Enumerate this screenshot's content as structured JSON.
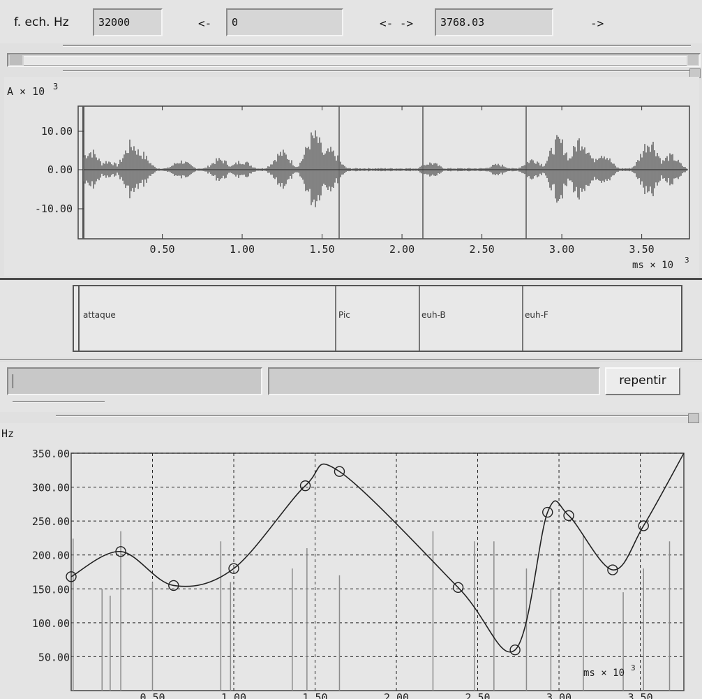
{
  "toolbar": {
    "sample_rate_label": "f. ech. Hz",
    "sample_rate_value": "32000",
    "left_arrow": "<-",
    "start_value": "0",
    "both_arrows": "<- ->",
    "end_value": "3768.03",
    "right_arrow": "->"
  },
  "waveform": {
    "y_unit": "A × 10",
    "y_unit_exp": "3",
    "x_unit": "ms × 10",
    "x_unit_exp": "3",
    "y_ticks": [
      "10.00",
      "0.00",
      "-10.00"
    ],
    "x_ticks": [
      "0.50",
      "1.00",
      "1.50",
      "2.00",
      "2.50",
      "3.00",
      "3.50"
    ]
  },
  "segments": {
    "labels": [
      "attaque",
      "Pic",
      "euh-B",
      "euh-F"
    ]
  },
  "edit_bar": {
    "input_value": "",
    "status_value": "",
    "undo_label": "repentir"
  },
  "pitch": {
    "y_unit": "Hz",
    "x_unit": "ms × 10",
    "x_unit_exp": "3",
    "y_ticks": [
      "350.00",
      "300.00",
      "250.00",
      "200.00",
      "150.00",
      "100.00",
      "50.00"
    ],
    "x_ticks": [
      "0.50",
      "1.00",
      "1.50",
      "2.00",
      "2.50",
      "3.00",
      "3.50"
    ]
  },
  "colors": {
    "background": "#e0e0e0",
    "field": "#d6d6d6",
    "curve": "#222222",
    "raw_curve": "#8c8c8c"
  }
}
